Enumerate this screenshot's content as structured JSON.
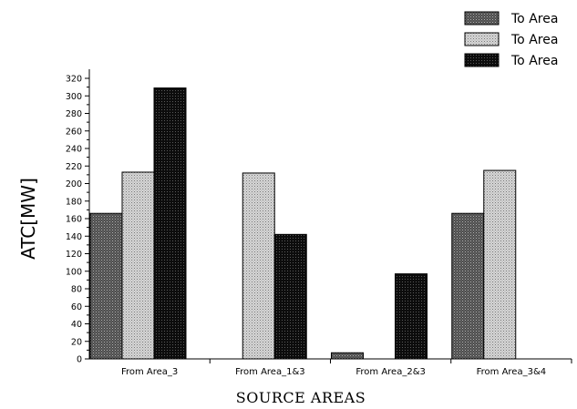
{
  "chart_data": {
    "type": "bar",
    "title": "",
    "xlabel": "SOURCE AREAS",
    "ylabel": "ATC[MW]",
    "ylim": [
      0,
      320
    ],
    "y_ticks": [
      0,
      20,
      40,
      60,
      80,
      100,
      120,
      140,
      160,
      180,
      200,
      220,
      240,
      260,
      280,
      300,
      320
    ],
    "categories": [
      "From Area_3",
      "From Area_1&3",
      "From Area_2&3",
      "From Area_3&4"
    ],
    "series": [
      {
        "name": "To Area",
        "values": [
          166,
          0,
          7,
          166
        ]
      },
      {
        "name": "To Area",
        "values": [
          213,
          212,
          0,
          215
        ]
      },
      {
        "name": "To Area",
        "values": [
          309,
          142,
          97,
          0
        ]
      }
    ],
    "legend_position": "top-right",
    "grid": false
  },
  "colors": {
    "series_1": "#555555",
    "series_2": "#c8c8c8",
    "series_3": "#141414"
  }
}
